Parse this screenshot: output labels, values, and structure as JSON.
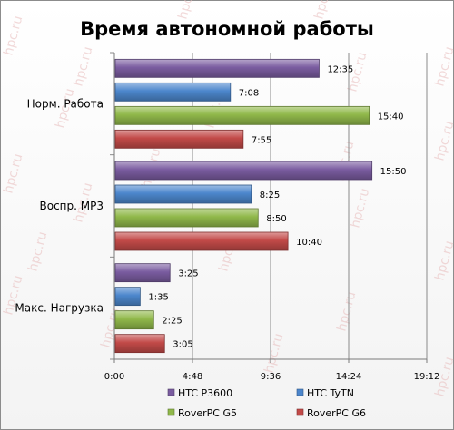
{
  "chart_data": {
    "type": "bar",
    "orientation": "horizontal",
    "title": "Время автономной работы",
    "categories": [
      "Норм. Работа",
      "Воспр. МР3",
      "Макс. Нагрузка"
    ],
    "series": [
      {
        "name": "HTC P3600",
        "color": "#7a5ca0",
        "labels": [
          "12:35",
          "15:50",
          "3:25"
        ],
        "values": [
          755,
          950,
          205
        ]
      },
      {
        "name": "HTC TyTN",
        "color": "#4c86cc",
        "labels": [
          "7:08",
          "8:25",
          "1:35"
        ],
        "values": [
          428,
          505,
          95
        ]
      },
      {
        "name": "RoverPC G5",
        "color": "#90b84a",
        "labels": [
          "15:40",
          "8:50",
          "2:25"
        ],
        "values": [
          940,
          530,
          145
        ]
      },
      {
        "name": "RoverPC G6",
        "color": "#c24a48",
        "labels": [
          "7:55",
          "10:40",
          "3:05"
        ],
        "values": [
          475,
          640,
          185
        ]
      }
    ],
    "value_units": "minutes",
    "xlim": [
      0,
      1152
    ],
    "x_ticks": [
      0,
      288,
      576,
      864,
      1152
    ],
    "x_tick_labels": [
      "0:00",
      "4:48",
      "9:36",
      "14:24",
      "19:12"
    ],
    "grid": "vertical",
    "legend_position": "bottom"
  },
  "watermark": {
    "text": "hpc.ru",
    "color": "#e8bcbc"
  }
}
